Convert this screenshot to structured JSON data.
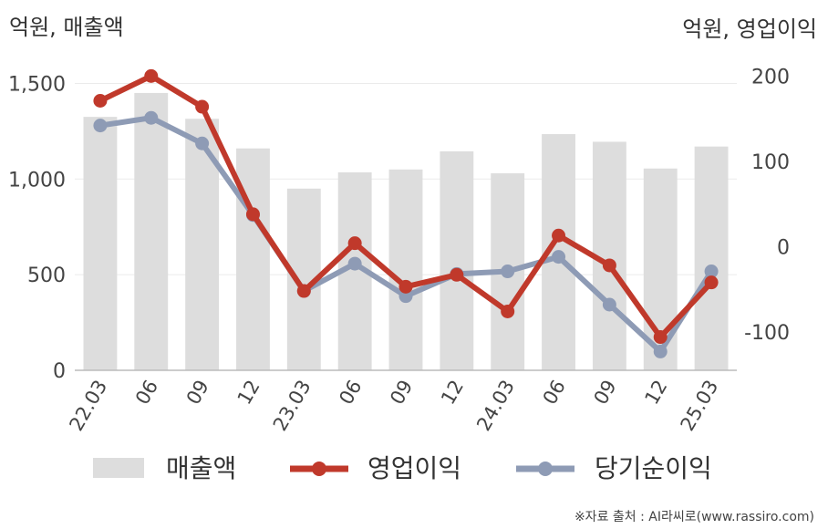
{
  "chart_data": {
    "type": "bar+line",
    "left_axis_label": "억원, 매출액",
    "right_axis_label": "억원, 영업이익",
    "categories": [
      "22.03",
      "06",
      "09",
      "12",
      "23.03",
      "06",
      "09",
      "12",
      "24.03",
      "06",
      "09",
      "12",
      "25.03"
    ],
    "left_axis": {
      "range": [
        0,
        1650
      ],
      "ticks": [
        0,
        500,
        1000,
        1500
      ],
      "tick_labels": [
        "0",
        "500",
        "1,000",
        "1,500"
      ]
    },
    "right_axis": {
      "range": [
        -145,
        225
      ],
      "ticks": [
        -100,
        0,
        100,
        200
      ],
      "tick_labels": [
        "-100",
        "0",
        "100",
        "200"
      ]
    },
    "grid": "horizontal",
    "legend_position": "bottom",
    "series": [
      {
        "name": "매출액",
        "type": "bar",
        "axis": "left",
        "color": "#dddddd",
        "values": [
          1325,
          1450,
          1315,
          1160,
          950,
          1035,
          1050,
          1145,
          1030,
          1235,
          1195,
          1055,
          1170
        ]
      },
      {
        "name": "영업이익",
        "type": "line",
        "axis": "right",
        "color": "#c0392b",
        "values": [
          171,
          200,
          164,
          38,
          -52,
          4,
          -47,
          -33,
          -76,
          13,
          -22,
          -106,
          -42
        ]
      },
      {
        "name": "당기순이익",
        "type": "line",
        "axis": "right",
        "color": "#8e9bb5",
        "values": [
          142,
          151,
          121,
          37,
          -52,
          -20,
          -58,
          -32,
          -29,
          -12,
          -68,
          -123,
          -29
        ]
      }
    ],
    "source": "※자료 출처 : AI라씨로(www.rassiro.com)"
  }
}
